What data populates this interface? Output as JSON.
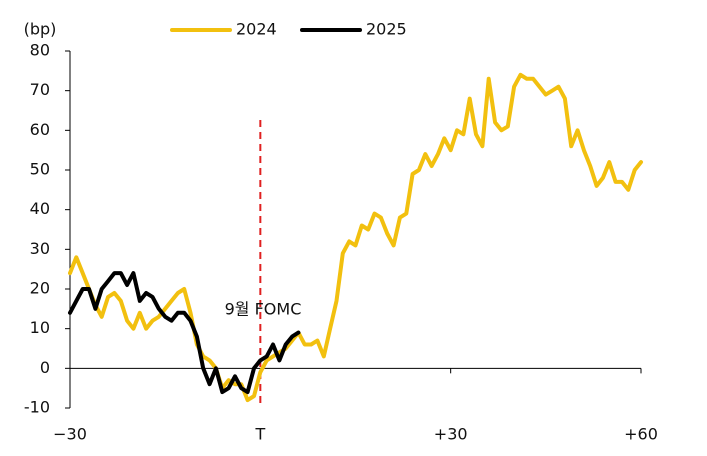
{
  "chart_data": {
    "type": "line",
    "y_label": "(bp)",
    "annotation": "9월 FOMC",
    "x": [
      -30,
      -29,
      -28,
      -27,
      -26,
      -25,
      -24,
      -23,
      -22,
      -21,
      -20,
      -19,
      -18,
      -17,
      -16,
      -15,
      -14,
      -13,
      -12,
      -11,
      -10,
      -9,
      -8,
      -7,
      -6,
      -5,
      -4,
      -3,
      -2,
      -1,
      0,
      1,
      2,
      3,
      4,
      5,
      6,
      7,
      8,
      9,
      10,
      11,
      12,
      13,
      14,
      15,
      16,
      17,
      18,
      19,
      20,
      21,
      22,
      23,
      24,
      25,
      26,
      27,
      28,
      29,
      30,
      31,
      32,
      33,
      34,
      35,
      36,
      37,
      38,
      39,
      40,
      41,
      42,
      43,
      44,
      45,
      46,
      47,
      48,
      49,
      50,
      51,
      52,
      53,
      54,
      55,
      56,
      57,
      58,
      59,
      60
    ],
    "series": [
      {
        "name": "2024",
        "color": "#f2c00f",
        "values": [
          24,
          28,
          24,
          20,
          16,
          13,
          18,
          19,
          17,
          12,
          10,
          14,
          10,
          12,
          13,
          15,
          17,
          19,
          20,
          14,
          6,
          3,
          2,
          0,
          -5,
          -3,
          -4,
          -4,
          -8,
          -7,
          -1,
          2,
          3,
          4,
          5,
          7,
          9,
          6,
          6,
          7,
          3,
          10,
          17,
          29,
          32,
          31,
          36,
          35,
          39,
          38,
          34,
          31,
          38,
          39,
          49,
          50,
          54,
          51,
          54,
          58,
          55,
          60,
          59,
          68,
          59,
          56,
          73,
          62,
          60,
          61,
          71,
          74,
          73,
          73,
          71,
          69,
          70,
          71,
          68,
          56,
          60,
          55,
          51,
          46,
          48,
          52,
          47,
          47,
          45,
          50,
          52
        ]
      },
      {
        "name": "2025",
        "color": "#000000",
        "values": [
          14,
          17,
          20,
          20,
          15,
          20,
          22,
          24,
          24,
          21,
          24,
          17,
          19,
          18,
          15,
          13,
          12,
          14,
          14,
          12,
          8,
          0,
          -4,
          0,
          -6,
          -5,
          -2,
          -5,
          -6,
          0,
          2,
          3,
          6,
          2,
          6,
          8,
          9,
          null,
          null,
          null,
          null,
          null,
          null,
          null,
          null,
          null,
          null,
          null,
          null,
          null,
          null,
          null,
          null,
          null,
          null,
          null,
          null,
          null,
          null,
          null,
          null,
          null,
          null,
          null,
          null,
          null,
          null,
          null,
          null,
          null,
          null,
          null,
          null,
          null,
          null,
          null,
          null,
          null,
          null,
          null,
          null,
          null,
          null,
          null,
          null,
          null,
          null,
          null,
          null,
          null,
          null
        ]
      }
    ],
    "xlim": [
      -30,
      60
    ],
    "xticks": [
      {
        "value": -30,
        "label": "−30"
      },
      {
        "value": 0,
        "label": "T"
      },
      {
        "value": 30,
        "label": "+30"
      },
      {
        "value": 60,
        "label": "+60"
      }
    ],
    "ylim": [
      -10,
      80
    ],
    "yticks": [
      -10,
      0,
      10,
      20,
      30,
      40,
      50,
      60,
      70,
      80
    ],
    "grid": false
  }
}
